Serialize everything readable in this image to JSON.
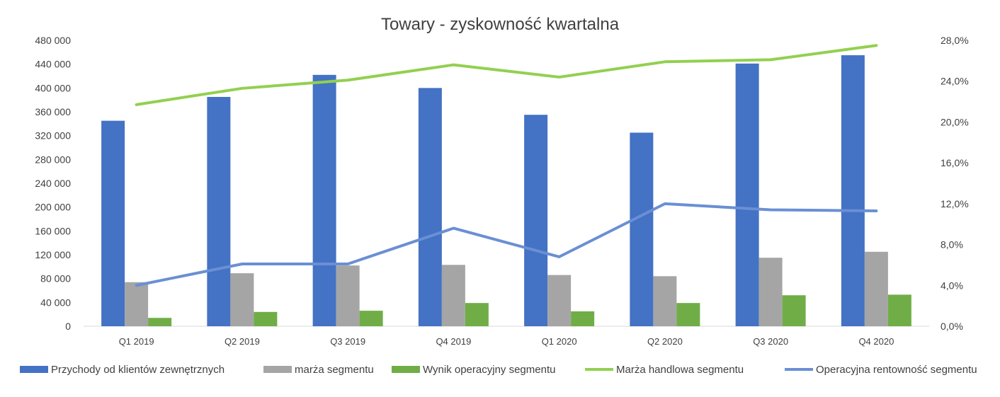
{
  "chart_data": {
    "type": "bar",
    "title": "Towary - zyskowność kwartalna",
    "categories": [
      "Q1 2019",
      "Q2 2019",
      "Q3 2019",
      "Q4 2019",
      "Q1 2020",
      "Q2 2020",
      "Q3 2020",
      "Q4 2020"
    ],
    "y_left": {
      "range": [
        0,
        480000
      ],
      "ticks": [
        "0",
        "40 000",
        "80 000",
        "120 000",
        "160 000",
        "200 000",
        "240 000",
        "280 000",
        "320 000",
        "360 000",
        "400 000",
        "440 000",
        "480 000"
      ]
    },
    "y_right": {
      "range": [
        0,
        28
      ],
      "ticks": [
        "0,0%",
        "4,0%",
        "8,0%",
        "12,0%",
        "16,0%",
        "20,0%",
        "24,0%",
        "28,0%"
      ]
    },
    "series": [
      {
        "name": "Przychody od klientów zewnętrznych",
        "kind": "bar",
        "axis": "left",
        "color": "#4472C4",
        "values": [
          345000,
          385000,
          422000,
          400000,
          355000,
          325000,
          441000,
          455000
        ]
      },
      {
        "name": "marża segmentu",
        "kind": "bar",
        "axis": "left",
        "color": "#A5A5A5",
        "values": [
          74000,
          89000,
          102000,
          103000,
          86000,
          84000,
          115000,
          125000
        ]
      },
      {
        "name": "Wynik operacyjny segmentu",
        "kind": "bar",
        "axis": "left",
        "color": "#70AD47",
        "values": [
          14000,
          24000,
          26000,
          39000,
          25000,
          39000,
          52000,
          53000
        ]
      },
      {
        "name": "Marża handlowa segmentu",
        "kind": "line",
        "axis": "right",
        "color": "#92D050",
        "values": [
          21.7,
          23.3,
          24.1,
          25.6,
          24.4,
          25.9,
          26.1,
          27.5
        ]
      },
      {
        "name": "Operacyjna rentowność segmentu",
        "kind": "line",
        "axis": "right",
        "color": "#6A8FD4",
        "values": [
          4.0,
          6.1,
          6.1,
          9.6,
          6.8,
          12.0,
          11.4,
          11.3
        ]
      }
    ],
    "grid": false,
    "legend_position": "bottom"
  }
}
